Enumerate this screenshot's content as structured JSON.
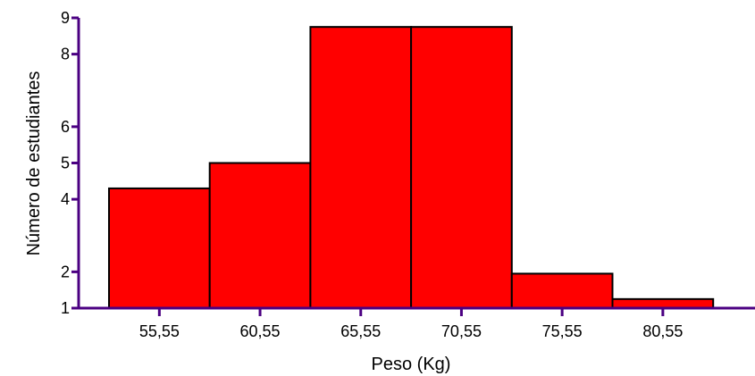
{
  "chart_data": {
    "type": "bar",
    "xlabel": "Peso (Kg)",
    "ylabel": "Número de estudiantes",
    "categories": [
      "55,55",
      "60,55",
      "65,55",
      "70,55",
      "75,55",
      "80,55"
    ],
    "values": [
      4.3,
      5,
      8.75,
      8.75,
      1.95,
      1.25
    ],
    "yticks": [
      "1",
      "2",
      "4",
      "5",
      "6",
      "8",
      "9"
    ],
    "ytick_values": [
      1,
      2,
      4,
      5,
      6,
      8,
      9
    ],
    "ylim": [
      1,
      9
    ],
    "grid": false,
    "legend": "none",
    "colors": {
      "bar_fill": "#ff0000",
      "bar_stroke": "#000000",
      "axis": "#4b0082"
    }
  }
}
